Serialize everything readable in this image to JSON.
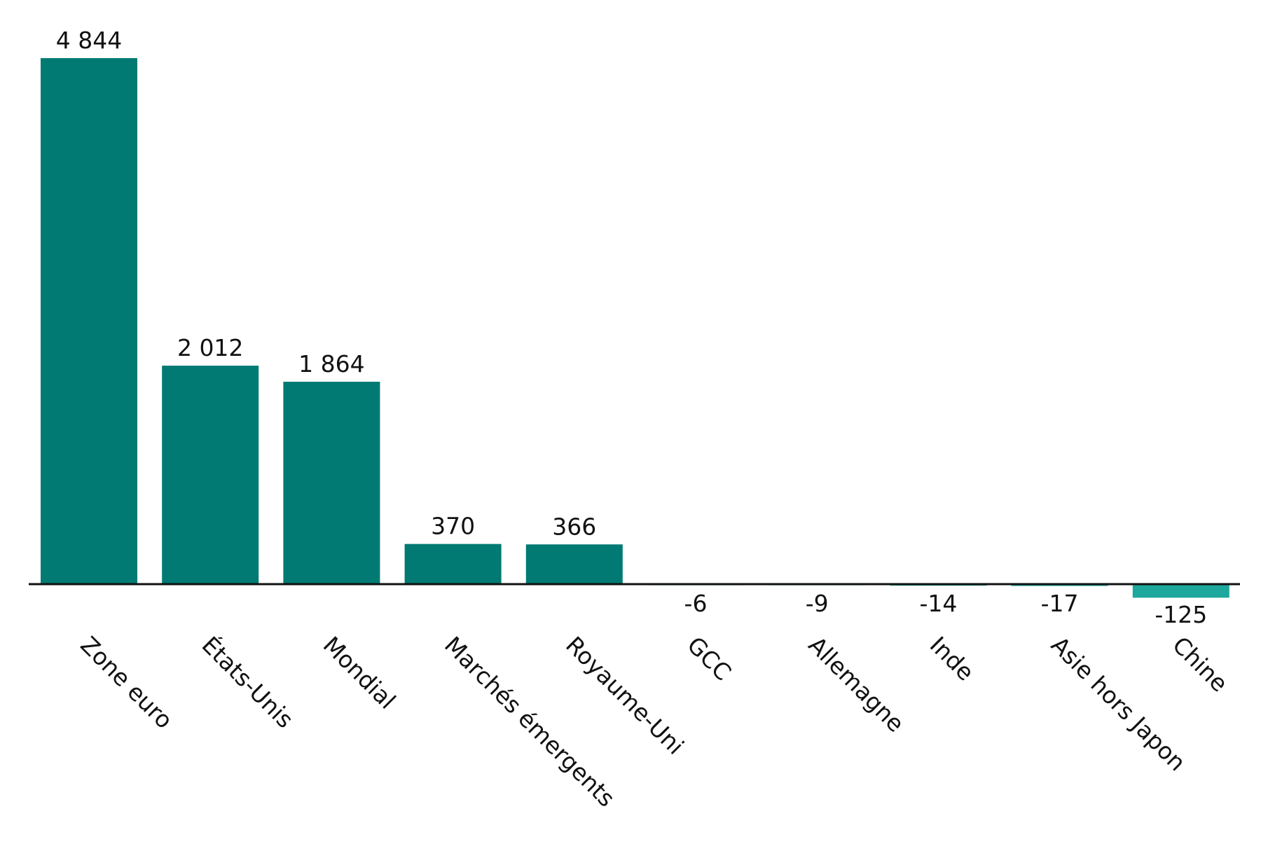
{
  "chart_data": {
    "type": "bar",
    "categories": [
      "Zone euro",
      "États-Unis",
      "Mondial",
      "Marchés émergents",
      "Royaume-Uni",
      "GCC",
      "Allemagne",
      "Inde",
      "Asie hors Japon",
      "Chine"
    ],
    "values": [
      4844,
      2012,
      1864,
      370,
      366,
      -6,
      -9,
      -14,
      -17,
      -125
    ],
    "value_labels": [
      "4 844",
      "2 012",
      "1 864",
      "370",
      "366",
      "-6",
      "-9",
      "-14",
      "-17",
      "-125"
    ],
    "title": "",
    "xlabel": "",
    "ylabel": "",
    "ylim": [
      -125,
      4844
    ],
    "grid": false,
    "legend": "none",
    "colors": {
      "positive_bar": "#007a72",
      "negative_bar": "#1ea89d",
      "axis": "#111111",
      "text": "#111111"
    }
  }
}
